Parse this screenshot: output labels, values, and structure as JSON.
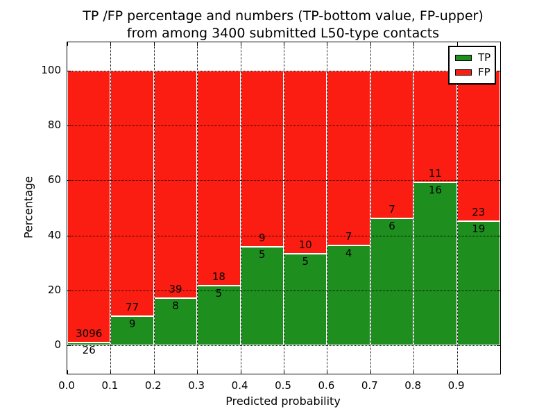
{
  "figure": {
    "title_line1": "TP /FP percentage and numbers (TP-bottom value, FP-upper)",
    "title_line2": "from among 3400 submitted L50-type contacts"
  },
  "axes": {
    "xlabel": "Predicted probability",
    "ylabel": "Percentage",
    "xtick_labels": [
      "0.0",
      "0.1",
      "0.2",
      "0.3",
      "0.4",
      "0.5",
      "0.6",
      "0.7",
      "0.8",
      "0.9"
    ],
    "ytick_values": [
      0,
      20,
      40,
      60,
      80,
      100
    ],
    "xlim": [
      0.0,
      1.0
    ],
    "ylim": [
      -10.5,
      110.5
    ],
    "grid": "dotted black, drawn above bars"
  },
  "legend": {
    "position": "upper right",
    "entries": [
      {
        "label": "TP",
        "color": "#1e8f1e"
      },
      {
        "label": "FP",
        "color": "#fc1d12"
      }
    ]
  },
  "chart_data": {
    "type": "bar",
    "stacked": true,
    "normalized": "each bar totals 100%",
    "title": "TP /FP percentage and numbers (TP-bottom value, FP-upper) from among 3400 submitted L50-type contacts",
    "xlabel": "Predicted probability",
    "ylabel": "Percentage",
    "total_submitted": 3400,
    "bin_width": 0.1,
    "bin_starts": [
      0.0,
      0.1,
      0.2,
      0.3,
      0.4,
      0.5,
      0.6,
      0.7,
      0.8,
      0.9
    ],
    "series": [
      {
        "name": "TP",
        "color": "#1e8f1e",
        "counts": [
          26,
          9,
          8,
          5,
          5,
          5,
          4,
          6,
          16,
          19
        ]
      },
      {
        "name": "FP",
        "color": "#fc1d12",
        "counts": [
          3096,
          77,
          39,
          18,
          9,
          10,
          7,
          7,
          11,
          23
        ]
      }
    ],
    "tp_percent_heights": [
      0.83,
      10.47,
      17.02,
      21.74,
      35.71,
      33.33,
      36.36,
      46.15,
      59.26,
      45.24
    ],
    "label_placement": "FP count printed just above TP/FP boundary, TP count just below it"
  }
}
